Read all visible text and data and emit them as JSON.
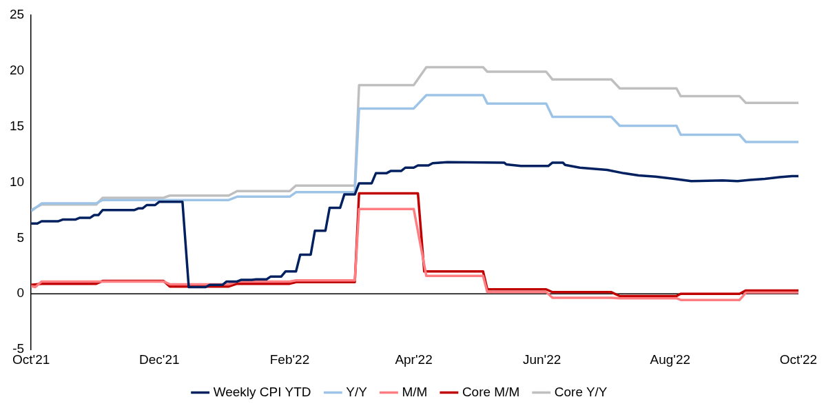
{
  "chart_data": {
    "type": "line",
    "marker": "none",
    "grid": false,
    "legend": "bottom",
    "xlim": [
      "2021-10-01",
      "2022-10-01"
    ],
    "xticks": [
      {
        "value": "2021-10-01",
        "label": "Oct'21"
      },
      {
        "value": "2021-12-01",
        "label": "Dec'21"
      },
      {
        "value": "2022-02-01",
        "label": "Feb'22"
      },
      {
        "value": "2022-04-01",
        "label": "Apr'22"
      },
      {
        "value": "2022-06-01",
        "label": "Jun'22"
      },
      {
        "value": "2022-08-01",
        "label": "Aug'22"
      },
      {
        "value": "2022-10-01",
        "label": "Oct'22"
      }
    ],
    "ylim": [
      -5,
      25
    ],
    "yticks": [
      -5,
      0,
      5,
      10,
      15,
      20,
      25
    ],
    "ref_lines": [
      {
        "axis": "y",
        "value": 0,
        "color": "#000000"
      }
    ],
    "series": [
      {
        "name": "Weekly CPI YTD",
        "color": "#002060",
        "x": [
          "2021-10-01",
          "2021-10-04",
          "2021-10-06",
          "2021-10-14",
          "2021-10-16",
          "2021-10-22",
          "2021-10-24",
          "2021-10-29",
          "2021-10-31",
          "2021-11-02",
          "2021-11-04",
          "2021-11-19",
          "2021-11-21",
          "2021-11-23",
          "2021-11-25",
          "2021-11-29",
          "2021-12-01",
          "2021-12-12",
          "2021-12-15",
          "2021-12-23",
          "2021-12-25",
          "2021-12-31",
          "2022-01-02",
          "2022-01-07",
          "2022-01-09",
          "2022-01-14",
          "2022-01-16",
          "2022-01-21",
          "2022-01-23",
          "2022-01-28",
          "2022-01-30",
          "2022-02-04",
          "2022-02-06",
          "2022-02-11",
          "2022-02-13",
          "2022-02-18",
          "2022-02-20",
          "2022-02-25",
          "2022-02-27",
          "2022-03-04",
          "2022-03-06",
          "2022-03-12",
          "2022-03-14",
          "2022-03-19",
          "2022-03-21",
          "2022-03-26",
          "2022-03-28",
          "2022-04-01",
          "2022-04-03",
          "2022-04-08",
          "2022-04-10",
          "2022-04-17",
          "2022-05-14",
          "2022-05-15",
          "2022-05-22",
          "2022-06-04",
          "2022-06-06",
          "2022-06-11",
          "2022-06-12",
          "2022-06-19",
          "2022-07-02",
          "2022-07-10",
          "2022-07-17",
          "2022-07-25",
          "2022-08-03",
          "2022-08-11",
          "2022-08-26",
          "2022-09-02",
          "2022-09-08",
          "2022-09-15",
          "2022-09-22",
          "2022-09-28",
          "2022-10-01"
        ],
        "values": [
          6.3,
          6.3,
          6.5,
          6.5,
          6.65,
          6.65,
          6.8,
          6.8,
          7.05,
          7.05,
          7.5,
          7.5,
          7.65,
          7.65,
          7.95,
          7.95,
          8.25,
          8.25,
          0.6,
          0.6,
          0.8,
          0.8,
          1.1,
          1.1,
          1.25,
          1.25,
          1.3,
          1.3,
          1.55,
          1.55,
          2.0,
          2.0,
          3.5,
          3.5,
          5.65,
          5.65,
          7.7,
          7.7,
          8.9,
          8.9,
          9.9,
          9.9,
          10.8,
          10.8,
          11.0,
          11.0,
          11.3,
          11.3,
          11.5,
          11.5,
          11.7,
          11.8,
          11.75,
          11.6,
          11.45,
          11.45,
          11.75,
          11.75,
          11.55,
          11.3,
          11.1,
          10.8,
          10.6,
          10.5,
          10.3,
          10.1,
          10.15,
          10.1,
          10.2,
          10.3,
          10.45,
          10.55,
          10.55
        ]
      },
      {
        "name": "Y/Y",
        "color": "#9dc3e6",
        "x": [
          "2021-10-01",
          "2021-10-06",
          "2021-11-01",
          "2021-11-04",
          "2022-01-03",
          "2022-01-07",
          "2022-02-01",
          "2022-02-04",
          "2022-03-04",
          "2022-03-06",
          "2022-04-01",
          "2022-04-07",
          "2022-05-04",
          "2022-05-06",
          "2022-06-03",
          "2022-06-06",
          "2022-07-04",
          "2022-07-08",
          "2022-08-04",
          "2022-08-06",
          "2022-09-03",
          "2022-09-06",
          "2022-10-01"
        ],
        "values": [
          7.4,
          8.1,
          8.1,
          8.4,
          8.4,
          8.7,
          8.7,
          9.1,
          9.1,
          16.6,
          16.6,
          17.8,
          17.8,
          17.05,
          17.05,
          15.85,
          15.85,
          15.05,
          15.05,
          14.25,
          14.25,
          13.6,
          13.6
        ]
      },
      {
        "name": "M/M",
        "color": "#ff7c80",
        "x": [
          "2021-10-01",
          "2021-10-03",
          "2021-10-06",
          "2021-12-03",
          "2021-12-06",
          "2022-01-03",
          "2022-01-07",
          "2022-02-01",
          "2022-02-04",
          "2022-03-04",
          "2022-03-06",
          "2022-04-01",
          "2022-04-07",
          "2022-05-04",
          "2022-05-06",
          "2022-06-03",
          "2022-06-06",
          "2022-07-04",
          "2022-07-08",
          "2022-08-04",
          "2022-08-06",
          "2022-09-03",
          "2022-09-06",
          "2022-10-01"
        ],
        "values": [
          0.7,
          0.6,
          1.1,
          1.1,
          0.85,
          0.85,
          1.1,
          1.1,
          1.2,
          1.2,
          7.6,
          7.6,
          1.6,
          1.6,
          0.15,
          0.15,
          -0.35,
          -0.35,
          -0.4,
          -0.4,
          -0.55,
          -0.55,
          0.1,
          0.1
        ]
      },
      {
        "name": "Core M/M",
        "color": "#c00000",
        "x": [
          "2021-10-01",
          "2021-10-06",
          "2021-11-01",
          "2021-11-04",
          "2021-12-03",
          "2021-12-06",
          "2022-01-03",
          "2022-01-07",
          "2022-02-01",
          "2022-02-04",
          "2022-03-04",
          "2022-03-06",
          "2022-04-03",
          "2022-04-06",
          "2022-05-04",
          "2022-05-06",
          "2022-06-03",
          "2022-06-06",
          "2022-07-04",
          "2022-07-08",
          "2022-08-04",
          "2022-08-06",
          "2022-09-03",
          "2022-09-06",
          "2022-10-01"
        ],
        "values": [
          0.8,
          0.9,
          0.9,
          1.15,
          1.15,
          0.65,
          0.65,
          0.9,
          0.9,
          1.05,
          1.05,
          9.0,
          9.0,
          2.0,
          2.0,
          0.4,
          0.4,
          0.15,
          0.15,
          -0.2,
          -0.2,
          0.0,
          0.0,
          0.3,
          0.3
        ]
      },
      {
        "name": "Core Y/Y",
        "color": "#bfbfbf",
        "x": [
          "2021-10-01",
          "2021-10-06",
          "2021-11-01",
          "2021-11-04",
          "2021-12-03",
          "2021-12-06",
          "2022-01-03",
          "2022-01-07",
          "2022-02-01",
          "2022-02-04",
          "2022-03-04",
          "2022-03-06",
          "2022-04-01",
          "2022-04-07",
          "2022-05-04",
          "2022-05-06",
          "2022-06-03",
          "2022-06-06",
          "2022-07-04",
          "2022-07-08",
          "2022-08-04",
          "2022-08-06",
          "2022-09-03",
          "2022-09-06",
          "2022-10-01"
        ],
        "values": [
          7.5,
          8.0,
          8.0,
          8.6,
          8.6,
          8.8,
          8.8,
          9.2,
          9.2,
          9.7,
          9.7,
          18.7,
          18.7,
          20.3,
          20.3,
          19.9,
          19.9,
          19.2,
          19.2,
          18.4,
          18.4,
          17.7,
          17.7,
          17.1,
          17.1
        ]
      }
    ]
  }
}
